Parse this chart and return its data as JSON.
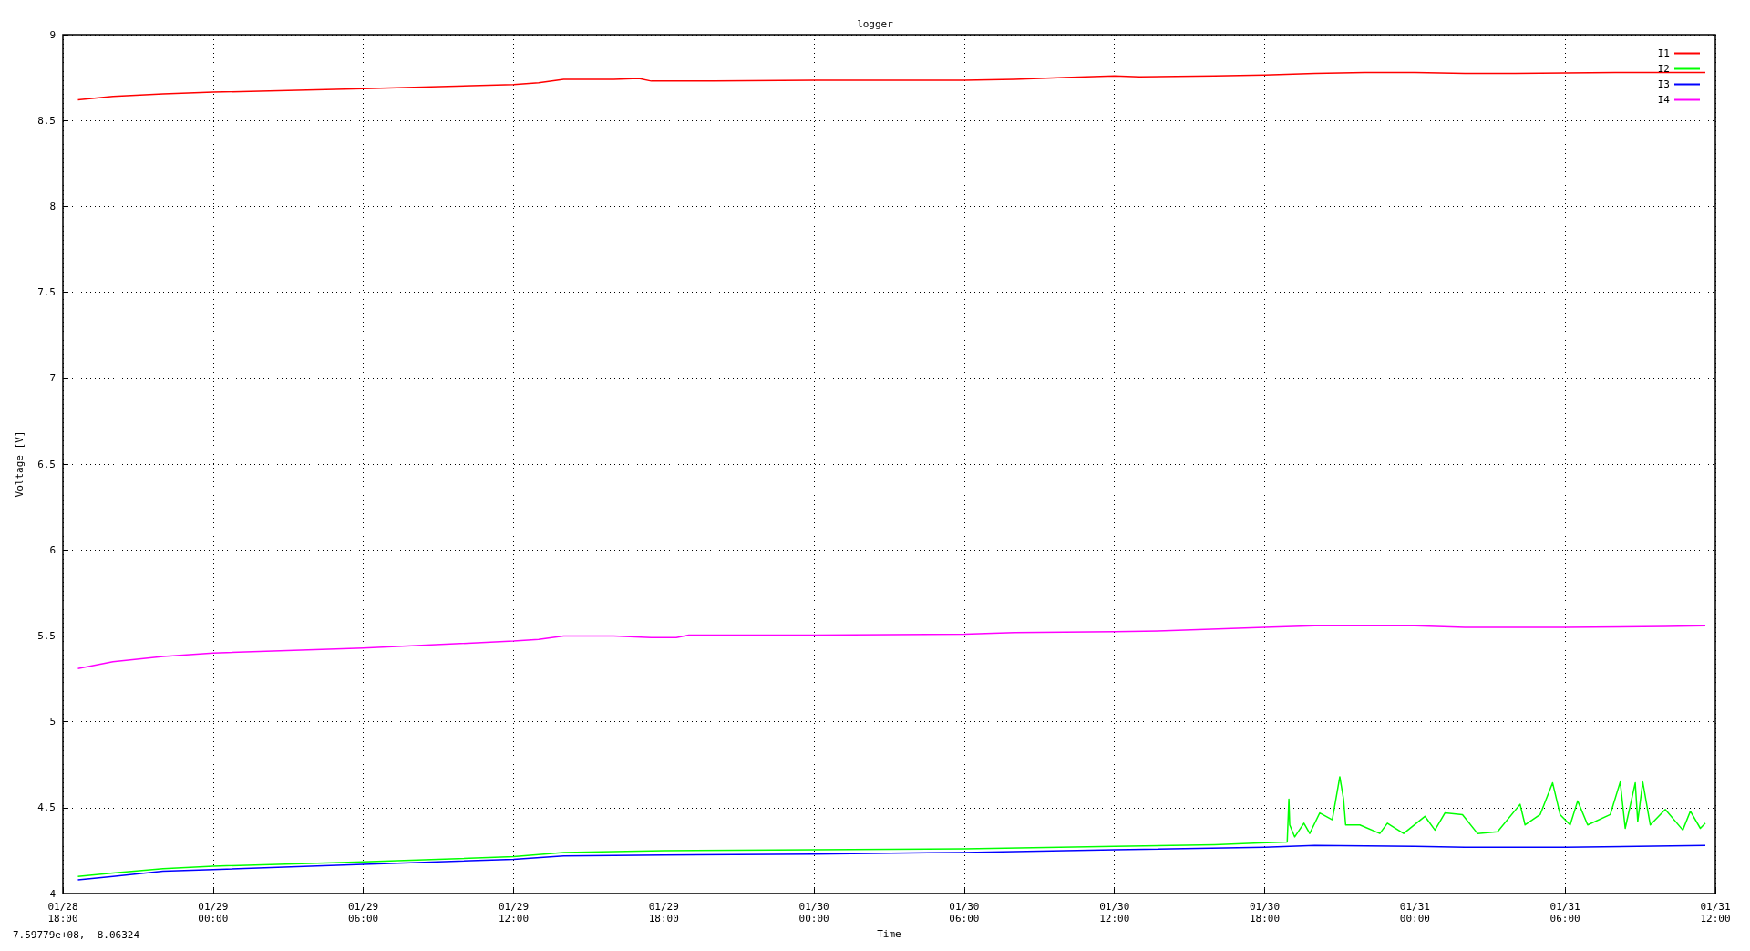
{
  "chart_data": {
    "type": "line",
    "title": "logger",
    "xlabel": "Time",
    "ylabel": "Voltage [V]",
    "annotations": [
      "7.59779e+08,  8.06324"
    ],
    "xlim": [
      "--01-28T18:00",
      "--01-31T12:00"
    ],
    "ylim": [
      4,
      9
    ],
    "xticks": [
      {
        "value": "--01-28T18:00",
        "label": "01/28\n18:00"
      },
      {
        "value": "--01-29T00:00",
        "label": "01/29\n00:00"
      },
      {
        "value": "--01-29T06:00",
        "label": "01/29\n06:00"
      },
      {
        "value": "--01-29T12:00",
        "label": "01/29\n12:00"
      },
      {
        "value": "--01-29T18:00",
        "label": "01/29\n18:00"
      },
      {
        "value": "--01-30T00:00",
        "label": "01/30\n00:00"
      },
      {
        "value": "--01-30T06:00",
        "label": "01/30\n06:00"
      },
      {
        "value": "--01-30T12:00",
        "label": "01/30\n12:00"
      },
      {
        "value": "--01-30T18:00",
        "label": "01/30\n18:00"
      },
      {
        "value": "--01-31T00:00",
        "label": "01/31\n00:00"
      },
      {
        "value": "--01-31T06:00",
        "label": "01/31\n06:00"
      },
      {
        "value": "--01-31T12:00",
        "label": "01/31\n12:00"
      }
    ],
    "yticks": [
      4,
      4.5,
      5,
      5.5,
      6,
      6.5,
      7,
      7.5,
      8,
      8.5,
      9
    ],
    "grid": true,
    "legend": "top right",
    "marker": "none",
    "line_style": "solid",
    "series": [
      {
        "name": "I1",
        "color": "#ff0000",
        "x": [
          "--01-28T18:36",
          "--01-28T20:00",
          "--01-28T22:00",
          "--01-29T00:00",
          "--01-29T06:00",
          "--01-29T12:00",
          "--01-29T13:00",
          "--01-29T14:00",
          "--01-29T16:00",
          "--01-29T17:00",
          "--01-29T17:30",
          "--01-29T20:00",
          "--01-30T00:00",
          "--01-30T06:00",
          "--01-30T08:00",
          "--01-30T10:00",
          "--01-30T12:00",
          "--01-30T13:00",
          "--01-30T16:00",
          "--01-30T18:00",
          "--01-30T20:00",
          "--01-30T22:00",
          "--01-31T00:00",
          "--01-31T02:00",
          "--01-31T04:00",
          "--01-31T08:00",
          "--01-31T11:36"
        ],
        "values": [
          8.62,
          8.64,
          8.655,
          8.665,
          8.685,
          8.71,
          8.72,
          8.74,
          8.74,
          8.745,
          8.73,
          8.73,
          8.735,
          8.735,
          8.74,
          8.75,
          8.76,
          8.755,
          8.76,
          8.765,
          8.775,
          8.78,
          8.78,
          8.775,
          8.775,
          8.78,
          8.78
        ]
      },
      {
        "name": "I2",
        "color": "#00ff00",
        "x": [
          "--01-28T18:36",
          "--01-28T20:00",
          "--01-28T22:00",
          "--01-29T00:00",
          "--01-29T06:00",
          "--01-29T12:00",
          "--01-29T14:00",
          "--01-29T18:00",
          "--01-30T00:00",
          "--01-30T06:00",
          "--01-30T12:00",
          "--01-30T16:00",
          "--01-30T17:48",
          "--01-30T18:54",
          "--01-30T18:58",
          "--01-30T19:00",
          "--01-30T19:12",
          "--01-30T19:34",
          "--01-30T19:48",
          "--01-30T20:12",
          "--01-30T20:42",
          "--01-30T21:00",
          "--01-30T21:09",
          "--01-30T21:14",
          "--01-30T21:48",
          "--01-30T22:36",
          "--01-30T22:54",
          "--01-30T23:33",
          "--01-31T00:24",
          "--01-31T00:48",
          "--01-31T01:12",
          "--01-31T01:54",
          "--01-31T02:30",
          "--01-31T03:18",
          "--01-31T04:12",
          "--01-31T04:24",
          "--01-31T05:00",
          "--01-31T05:30",
          "--01-31T05:48",
          "--01-31T06:12",
          "--01-31T06:30",
          "--01-31T06:54",
          "--01-31T07:48",
          "--01-31T08:12",
          "--01-31T08:24",
          "--01-31T08:48",
          "--01-31T08:54",
          "--01-31T09:06",
          "--01-31T09:24",
          "--01-31T10:00",
          "--01-31T10:42",
          "--01-31T11:00",
          "--01-31T11:24",
          "--01-31T11:36"
        ],
        "values": [
          4.1,
          4.12,
          4.145,
          4.16,
          4.185,
          4.215,
          4.24,
          4.25,
          4.255,
          4.26,
          4.275,
          4.285,
          4.295,
          4.3,
          4.55,
          4.4,
          4.33,
          4.41,
          4.35,
          4.47,
          4.43,
          4.68,
          4.55,
          4.4,
          4.4,
          4.35,
          4.41,
          4.35,
          4.45,
          4.37,
          4.47,
          4.46,
          4.35,
          4.36,
          4.52,
          4.4,
          4.46,
          4.645,
          4.46,
          4.4,
          4.54,
          4.4,
          4.46,
          4.65,
          4.38,
          4.645,
          4.42,
          4.65,
          4.4,
          4.49,
          4.37,
          4.48,
          4.38,
          4.41
        ]
      },
      {
        "name": "I3",
        "color": "#0000ff",
        "x": [
          "--01-28T18:36",
          "--01-28T20:00",
          "--01-28T22:00",
          "--01-29T00:00",
          "--01-29T06:00",
          "--01-29T12:00",
          "--01-29T14:00",
          "--01-29T18:00",
          "--01-30T00:00",
          "--01-30T06:00",
          "--01-30T12:00",
          "--01-30T18:00",
          "--01-30T20:00",
          "--01-31T00:00",
          "--01-31T02:00",
          "--01-31T06:00",
          "--01-31T11:36"
        ],
        "values": [
          4.08,
          4.1,
          4.13,
          4.14,
          4.17,
          4.2,
          4.22,
          4.225,
          4.23,
          4.24,
          4.255,
          4.27,
          4.28,
          4.275,
          4.27,
          4.27,
          4.28
        ]
      },
      {
        "name": "I4",
        "color": "#ff00ff",
        "x": [
          "--01-28T18:36",
          "--01-28T20:00",
          "--01-28T22:00",
          "--01-29T00:00",
          "--01-29T06:00",
          "--01-29T12:00",
          "--01-29T13:00",
          "--01-29T14:00",
          "--01-29T16:00",
          "--01-29T17:30",
          "--01-29T18:30",
          "--01-29T19:00",
          "--01-30T00:00",
          "--01-30T06:00",
          "--01-30T08:00",
          "--01-30T12:00",
          "--01-30T14:00",
          "--01-30T18:00",
          "--01-30T20:00",
          "--01-31T00:00",
          "--01-31T02:00",
          "--01-31T06:00",
          "--01-31T10:00",
          "--01-31T11:36"
        ],
        "values": [
          5.31,
          5.35,
          5.38,
          5.4,
          5.43,
          5.47,
          5.48,
          5.5,
          5.5,
          5.49,
          5.49,
          5.505,
          5.505,
          5.51,
          5.52,
          5.525,
          5.53,
          5.55,
          5.56,
          5.56,
          5.55,
          5.55,
          5.555,
          5.56
        ]
      }
    ]
  }
}
